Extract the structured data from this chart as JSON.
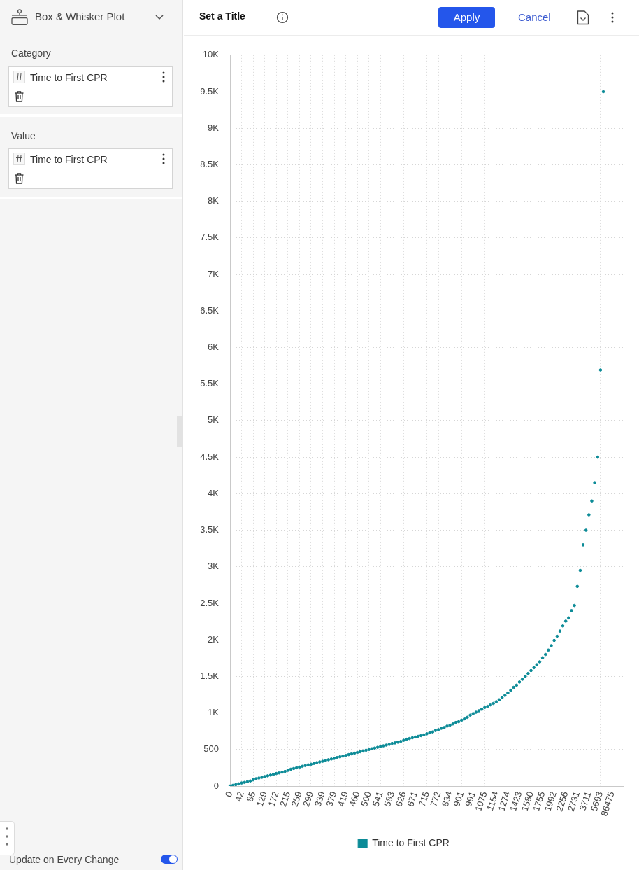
{
  "chart_data": {
    "type": "scatter",
    "title": "Set a Title",
    "categories": [
      "0",
      null,
      null,
      null,
      "42",
      null,
      null,
      null,
      "85",
      null,
      null,
      null,
      "129",
      null,
      null,
      null,
      "172",
      null,
      null,
      null,
      "215",
      null,
      null,
      null,
      "259",
      null,
      null,
      null,
      "299",
      null,
      null,
      null,
      "339",
      null,
      null,
      null,
      "379",
      null,
      null,
      null,
      "419",
      null,
      null,
      null,
      "460",
      null,
      null,
      null,
      "500",
      null,
      null,
      null,
      "541",
      null,
      null,
      null,
      "583",
      null,
      null,
      null,
      "626",
      null,
      null,
      null,
      "671",
      null,
      null,
      null,
      "715",
      null,
      null,
      null,
      "772",
      null,
      null,
      null,
      "834",
      null,
      null,
      null,
      "901",
      null,
      null,
      null,
      "991",
      null,
      null,
      null,
      "1075",
      null,
      null,
      null,
      "1154",
      null,
      null,
      null,
      "1274",
      null,
      null,
      null,
      "1423",
      null,
      null,
      null,
      "1580",
      null,
      null,
      null,
      "1755",
      null,
      null,
      null,
      "1992",
      null,
      null,
      null,
      "2256",
      null,
      null,
      null,
      "2731",
      null,
      null,
      null,
      "3711",
      null,
      null,
      null,
      "5693",
      null,
      null,
      null,
      "86475",
      null,
      null,
      null,
      null
    ],
    "series": [
      {
        "name": "Time to First CPR",
        "color": "#0b8b97",
        "values": [
          0,
          10,
          20,
          30,
          42,
          50,
          60,
          70,
          85,
          100,
          110,
          120,
          129,
          140,
          150,
          160,
          172,
          180,
          190,
          200,
          215,
          230,
          240,
          250,
          259,
          270,
          280,
          290,
          299,
          310,
          320,
          330,
          339,
          350,
          360,
          370,
          379,
          390,
          400,
          410,
          419,
          430,
          440,
          450,
          460,
          470,
          480,
          490,
          500,
          510,
          520,
          530,
          541,
          550,
          560,
          570,
          583,
          590,
          600,
          610,
          626,
          640,
          650,
          660,
          671,
          680,
          690,
          700,
          715,
          730,
          740,
          760,
          772,
          790,
          800,
          820,
          834,
          850,
          870,
          880,
          901,
          920,
          940,
          970,
          991,
          1010,
          1030,
          1050,
          1075,
          1090,
          1110,
          1130,
          1154,
          1180,
          1210,
          1240,
          1274,
          1310,
          1350,
          1380,
          1423,
          1460,
          1500,
          1540,
          1580,
          1620,
          1660,
          1700,
          1755,
          1800,
          1860,
          1920,
          1992,
          2050,
          2120,
          2190,
          2256,
          2300,
          2400,
          2470,
          2731,
          2950,
          3300,
          3500,
          3711,
          3900,
          4150,
          4500,
          5693,
          9500,
          null,
          null,
          null,
          null,
          null,
          null,
          null
        ]
      }
    ],
    "ylim": [
      0,
      10000
    ],
    "yticks": [
      0,
      500,
      {
        "value": 1000,
        "label": "1K"
      },
      {
        "value": 1500,
        "label": "1.5K"
      },
      {
        "value": 2000,
        "label": "2K"
      },
      {
        "value": 2500,
        "label": "2.5K"
      },
      {
        "value": 3000,
        "label": "3K"
      },
      {
        "value": 3500,
        "label": "3.5K"
      },
      {
        "value": 4000,
        "label": "4K"
      },
      {
        "value": 4500,
        "label": "4.5K"
      },
      {
        "value": 5000,
        "label": "5K"
      },
      {
        "value": 5500,
        "label": "5.5K"
      },
      {
        "value": 6000,
        "label": "6K"
      },
      {
        "value": 6500,
        "label": "6.5K"
      },
      {
        "value": 7000,
        "label": "7K"
      },
      {
        "value": 7500,
        "label": "7.5K"
      },
      {
        "value": 8000,
        "label": "8K"
      },
      {
        "value": 8500,
        "label": "8.5K"
      },
      {
        "value": 9000,
        "label": "9K"
      },
      {
        "value": 9500,
        "label": "9.5K"
      },
      {
        "value": 10000,
        "label": "10K"
      }
    ],
    "grid": true,
    "legend": "bottom",
    "marker": "circle",
    "annotations": [
      "Box & Whisker Plot",
      "Category",
      "Time to First CPR",
      "Value",
      "Time to First CPR",
      "Apply",
      "Cancel",
      "Update on Every Change"
    ]
  }
}
